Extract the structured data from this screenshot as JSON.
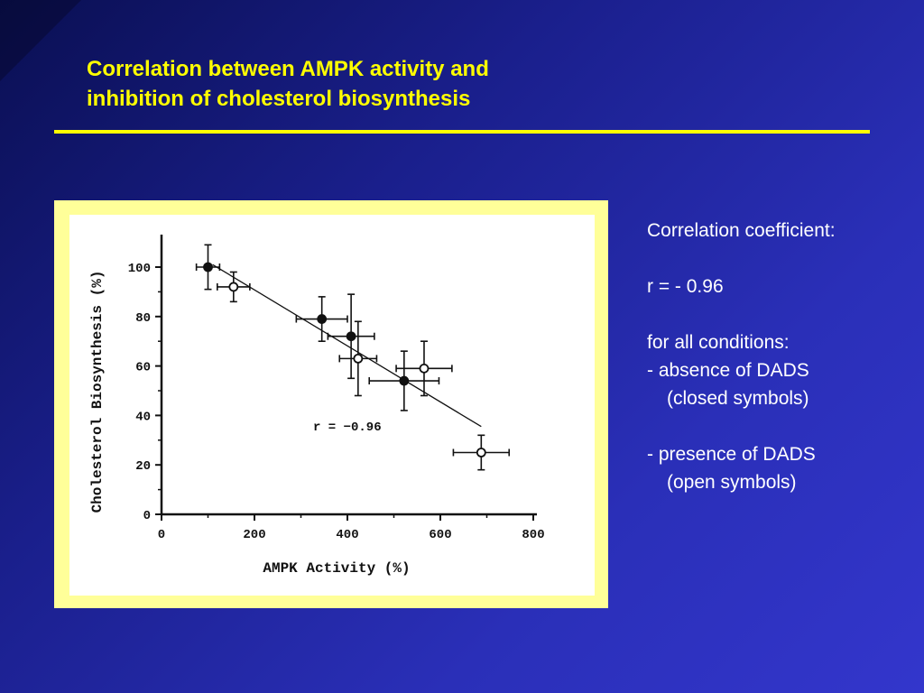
{
  "slide": {
    "title_line1": "Correlation between AMPK activity and",
    "title_line2": "inhibition of cholesterol biosynthesis",
    "colors": {
      "title": "#ffff00",
      "text": "#ffffff",
      "frame": "#ffff99",
      "background": "#2a2fb8"
    }
  },
  "side_panel": {
    "heading": "Correlation coefficient:",
    "r_value": "r = - 0.96",
    "conditions_heading": "for all conditions:",
    "condition1_line1": "-  absence of DADS",
    "condition1_line2": "(closed symbols)",
    "condition2_line1": "-  presence of DADS",
    "condition2_line2": "(open symbols)"
  },
  "chart_data": {
    "type": "scatter",
    "title": "",
    "xlabel": "AMPK Activity (%)",
    "ylabel": "Cholesterol Biosynthesis (%)",
    "xlim": [
      0,
      800
    ],
    "ylim": [
      0,
      110
    ],
    "x_ticks": [
      "0",
      "200",
      "400",
      "600",
      "800"
    ],
    "y_ticks": [
      "0",
      "20",
      "40",
      "60",
      "80",
      "100"
    ],
    "annotation": "r = −0.96",
    "grid": false,
    "series": [
      {
        "marker": "closed",
        "points": [
          {
            "x": 100,
            "y": 100,
            "xerr": 25,
            "yerr": 9
          },
          {
            "x": 345,
            "y": 79,
            "xerr": 55,
            "yerr": 9
          },
          {
            "x": 408,
            "y": 72,
            "xerr": 50,
            "yerr": 17
          },
          {
            "x": 522,
            "y": 54,
            "xerr": 75,
            "yerr": 12
          }
        ]
      },
      {
        "marker": "open",
        "points": [
          {
            "x": 155,
            "y": 92,
            "xerr": 35,
            "yerr": 6
          },
          {
            "x": 423,
            "y": 63,
            "xerr": 40,
            "yerr": 15
          },
          {
            "x": 565,
            "y": 59,
            "xerr": 60,
            "yerr": 11
          },
          {
            "x": 688,
            "y": 25,
            "xerr": 60,
            "yerr": 7
          }
        ]
      }
    ],
    "fit_line": {
      "x": [
        110,
        688
      ],
      "y": [
        101,
        35.5
      ]
    }
  }
}
